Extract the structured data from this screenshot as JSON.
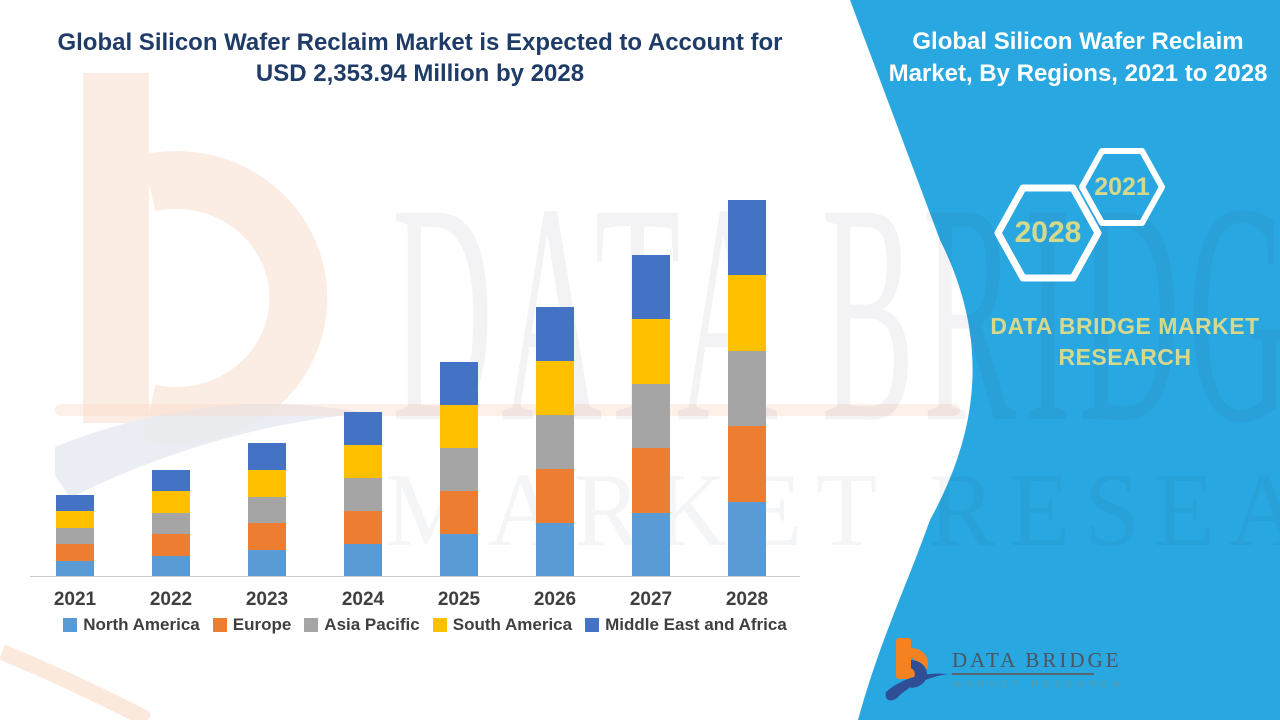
{
  "title": {
    "line1": "Global Silicon Wafer Reclaim Market is Expected to Account for",
    "line2": "USD 2,353.94 Million by 2028"
  },
  "banner": {
    "heading_line1": "Global Silicon Wafer Reclaim",
    "heading_line2": "Market, By Regions, 2021 to 2028",
    "hexagon_year_left": "2028",
    "hexagon_year_right": "2021",
    "brand_line1": "DATA BRIDGE MARKET",
    "brand_line2": "RESEARCH",
    "background_color": "#29A7E0",
    "heading_color": "#FFFFFF",
    "accent_text_color": "#D6D98C"
  },
  "chart_data": {
    "type": "bar",
    "stacked": true,
    "unit": "USD Million",
    "categories": [
      "2021",
      "2022",
      "2023",
      "2024",
      "2025",
      "2026",
      "2027",
      "2028"
    ],
    "series": [
      {
        "name": "North America",
        "color": "#5B9BD5",
        "values": [
          102.4,
          133.8,
          167.6,
          206.2,
          268.8,
          337.6,
          402.6,
          470.79
        ]
      },
      {
        "name": "Europe",
        "color": "#ED7D31",
        "values": [
          102.4,
          133.8,
          167.6,
          206.2,
          268.8,
          337.6,
          402.6,
          470.79
        ]
      },
      {
        "name": "Asia Pacific",
        "color": "#A5A5A5",
        "values": [
          102.4,
          133.8,
          167.6,
          206.2,
          268.8,
          337.6,
          402.6,
          470.79
        ]
      },
      {
        "name": "South America",
        "color": "#FFC000",
        "values": [
          102.4,
          133.8,
          167.6,
          206.2,
          268.8,
          337.6,
          402.6,
          470.79
        ]
      },
      {
        "name": "Middle East and Africa",
        "color": "#4472C4",
        "values": [
          102.4,
          133.8,
          167.6,
          206.2,
          268.8,
          337.6,
          402.6,
          470.79
        ]
      }
    ],
    "estimated_totals": [
      512,
      669,
      838,
      1031,
      1344,
      1688,
      2013,
      2353.94
    ],
    "stated_value_2028": 2353.94,
    "ylim": [
      0,
      2400
    ],
    "gridlines": false,
    "y_axis_labels_shown": false,
    "legend_position": "bottom"
  },
  "watermark": {
    "row1": "DATA BRIDGE",
    "row2": "MARKET RESEARCH"
  },
  "footer_logo": {
    "brand": "DATA BRIDGE",
    "tagline": "MARKET RESEARCH"
  }
}
